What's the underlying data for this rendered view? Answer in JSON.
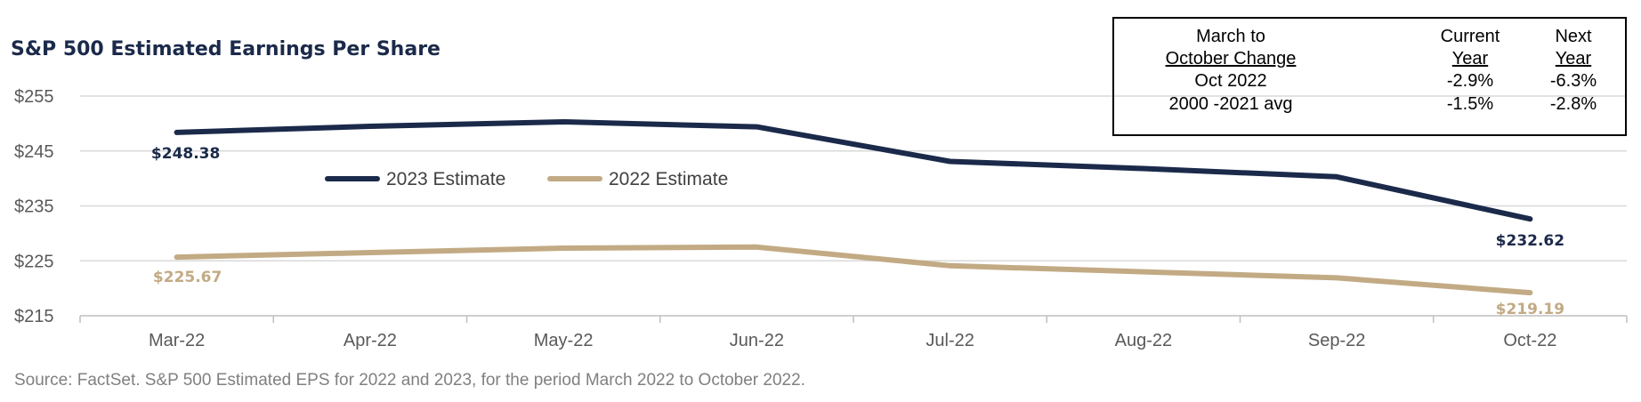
{
  "chart_data": {
    "type": "line",
    "title": "S&P 500 Estimated Earnings Per Share",
    "categories": [
      "Mar-22",
      "Apr-22",
      "May-22",
      "Jun-22",
      "Jul-22",
      "Aug-22",
      "Sep-22",
      "Oct-22"
    ],
    "y_ticks": [
      "$255",
      "$245",
      "$235",
      "$225",
      "$215"
    ],
    "ylim": [
      215,
      255
    ],
    "grid": true,
    "legend_position": "upper-left",
    "series": [
      {
        "name": "2023 Estimate",
        "color": "#1b2a4a",
        "values": [
          248.38,
          249.5,
          250.3,
          249.4,
          243.1,
          241.8,
          240.3,
          232.62
        ],
        "labels": [
          {
            "index": 0,
            "text": "$248.38"
          },
          {
            "index": 7,
            "text": "$232.62"
          }
        ]
      },
      {
        "name": "2022 Estimate",
        "color": "#c2aa84",
        "values": [
          225.67,
          226.5,
          227.3,
          227.5,
          224.1,
          223.0,
          221.9,
          219.19
        ],
        "labels": [
          {
            "index": 0,
            "text": "$225.67"
          },
          {
            "index": 7,
            "text": "$219.19"
          }
        ]
      }
    ],
    "source": "Source: FactSet. S&P 500 Estimated EPS for 2022 and 2023, for the period March 2022 to October 2022."
  },
  "change_table": {
    "header_label": [
      "March to",
      "October Change"
    ],
    "col_current": [
      "Current",
      "Year"
    ],
    "col_next": [
      "Next",
      "Year"
    ],
    "rows": [
      {
        "label": "Oct 2022",
        "current": "-2.9%",
        "next": "-6.3%"
      },
      {
        "label": "2000 -2021 avg",
        "current": "-1.5%",
        "next": "-2.8%"
      }
    ]
  }
}
